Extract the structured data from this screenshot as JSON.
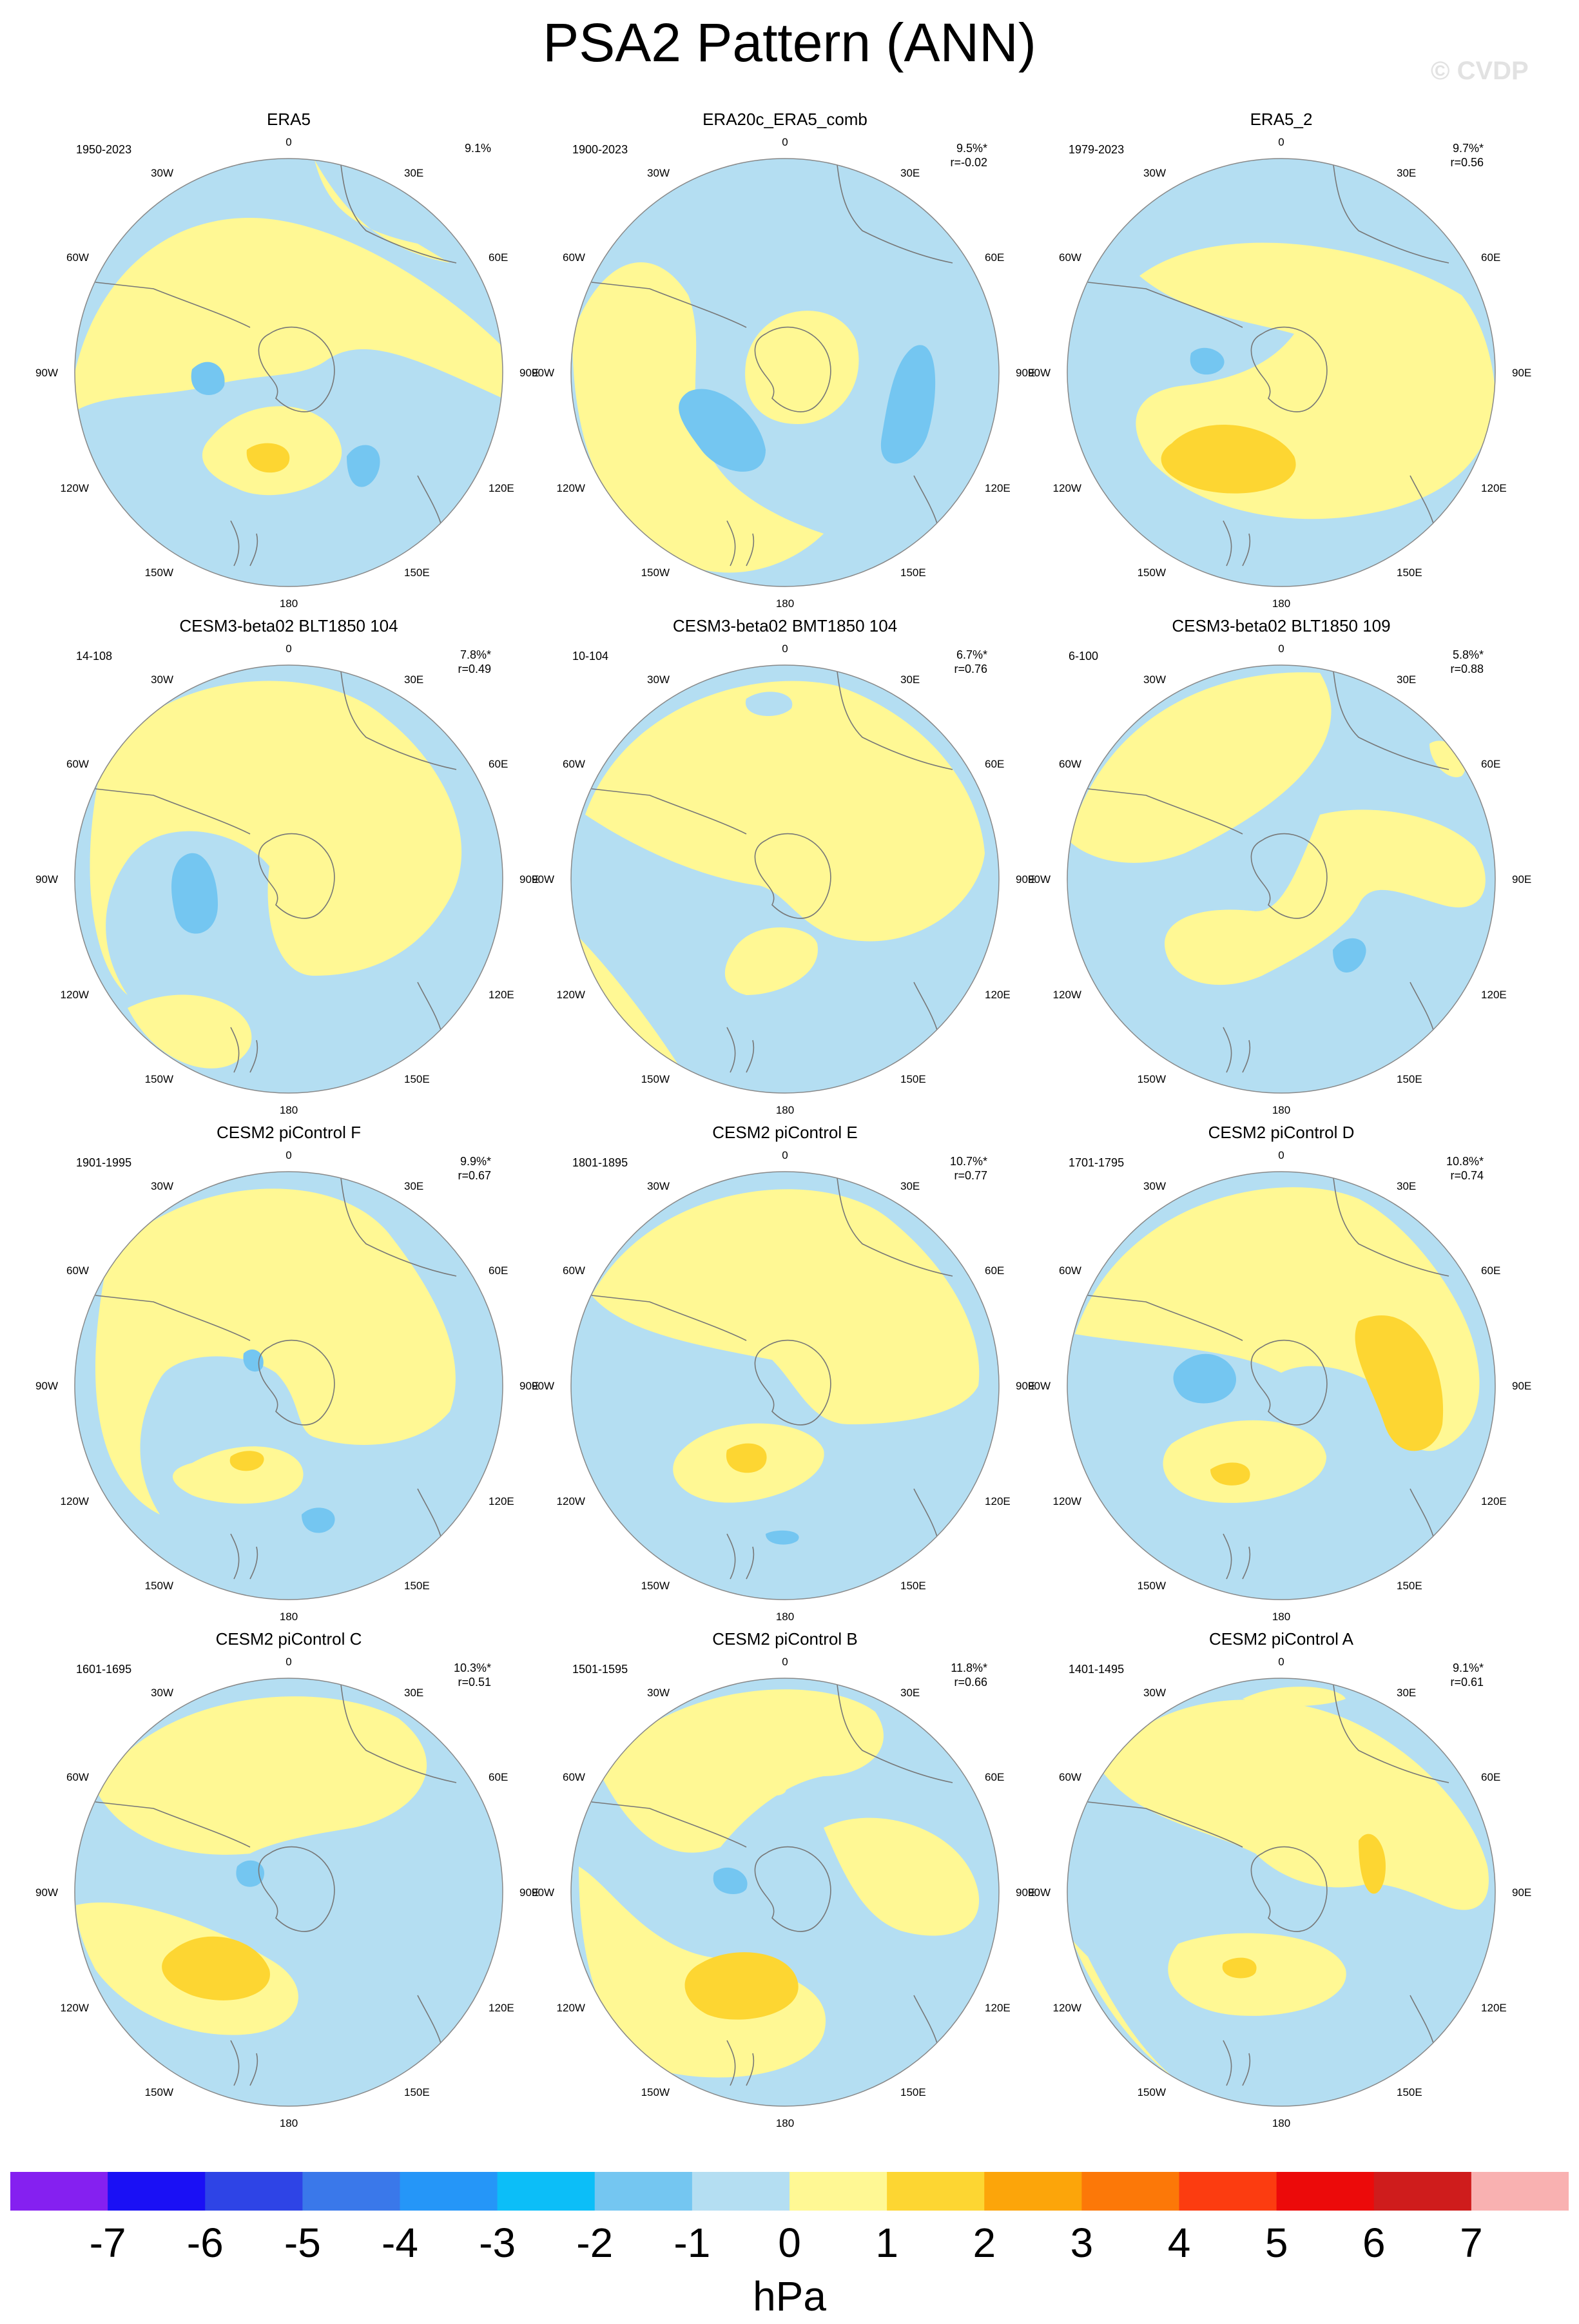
{
  "title": "PSA2 Pattern (ANN)",
  "watermark": "© CVDP",
  "colors": {
    "neg1": "#b4def2",
    "neg2": "#74c6f1",
    "pos1": "#fff894",
    "pos2": "#fdd632",
    "coast": "#777777",
    "outline": "#888888"
  },
  "longitude_labels": [
    "0",
    "30E",
    "60E",
    "90E",
    "120E",
    "150E",
    "180",
    "150W",
    "120W",
    "90W",
    "60W",
    "30W"
  ],
  "panels": [
    {
      "title": "ERA5",
      "years": "1950-2023",
      "pct": "9.1%",
      "r": ""
    },
    {
      "title": "ERA20c_ERA5_comb",
      "years": "1900-2023",
      "pct": "9.5%*",
      "r": "r=-0.02"
    },
    {
      "title": "ERA5_2",
      "years": "1979-2023",
      "pct": "9.7%*",
      "r": "r=0.56"
    },
    {
      "title": "CESM3-beta02 BLT1850 104",
      "years": "14-108",
      "pct": "7.8%*",
      "r": "r=0.49"
    },
    {
      "title": "CESM3-beta02 BMT1850 104",
      "years": "10-104",
      "pct": "6.7%*",
      "r": "r=0.76"
    },
    {
      "title": "CESM3-beta02 BLT1850 109",
      "years": "6-100",
      "pct": "5.8%*",
      "r": "r=0.88"
    },
    {
      "title": "CESM2 piControl F",
      "years": "1901-1995",
      "pct": "9.9%*",
      "r": "r=0.67"
    },
    {
      "title": "CESM2 piControl E",
      "years": "1801-1895",
      "pct": "10.7%*",
      "r": "r=0.77"
    },
    {
      "title": "CESM2 piControl D",
      "years": "1701-1795",
      "pct": "10.8%*",
      "r": "r=0.74"
    },
    {
      "title": "CESM2 piControl C",
      "years": "1601-1695",
      "pct": "10.3%*",
      "r": "r=0.51"
    },
    {
      "title": "CESM2 piControl B",
      "years": "1501-1595",
      "pct": "11.8%*",
      "r": "r=0.66"
    },
    {
      "title": "CESM2 piControl A",
      "years": "1401-1495",
      "pct": "9.1%*",
      "r": "r=0.61"
    }
  ],
  "colorbar": {
    "colors": [
      "#8520f0",
      "#1a10f5",
      "#2e44e6",
      "#3a78ea",
      "#2596f8",
      "#0cbef8",
      "#74c6f1",
      "#b4def2",
      "#fff894",
      "#fdd632",
      "#fca50a",
      "#fc7808",
      "#fc3c10",
      "#ec0a0a",
      "#cf1c1c",
      "#f9b1b1"
    ],
    "labels": [
      "-7",
      "-6",
      "-5",
      "-4",
      "-3",
      "-2",
      "-1",
      "0",
      "1",
      "2",
      "3",
      "4",
      "5",
      "6",
      "7"
    ],
    "units": "hPa"
  }
}
